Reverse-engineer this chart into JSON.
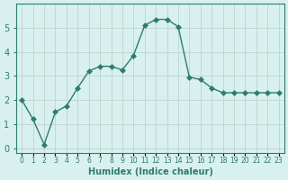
{
  "x": [
    0,
    1,
    2,
    3,
    4,
    5,
    6,
    7,
    8,
    9,
    10,
    11,
    12,
    13,
    14,
    15,
    16,
    17,
    18,
    19,
    20,
    21,
    22,
    23
  ],
  "y": [
    2.0,
    1.2,
    0.15,
    1.5,
    1.75,
    2.5,
    3.2,
    3.4,
    3.4,
    3.25,
    3.85,
    5.1,
    5.35,
    5.35,
    5.05,
    2.95,
    2.85,
    2.5,
    2.3,
    2.3,
    2.3,
    2.3,
    2.3,
    2.3
  ],
  "line_color": "#2e7d6e",
  "marker": "D",
  "marker_size": 3,
  "bg_color": "#d8f0ee",
  "grid_color": "#c0d8d4",
  "xlabel": "Humidex (Indice chaleur)",
  "xlim": [
    -0.5,
    23.5
  ],
  "ylim": [
    -0.2,
    6.0
  ],
  "yticks": [
    0,
    1,
    2,
    3,
    4,
    5
  ],
  "xticks": [
    0,
    1,
    2,
    3,
    4,
    5,
    6,
    7,
    8,
    9,
    10,
    11,
    12,
    13,
    14,
    15,
    16,
    17,
    18,
    19,
    20,
    21,
    22,
    23
  ],
  "xtick_labels": [
    "0",
    "1",
    "2",
    "3",
    "4",
    "5",
    "6",
    "7",
    "8",
    "9",
    "10",
    "11",
    "12",
    "13",
    "14",
    "15",
    "16",
    "17",
    "18",
    "19",
    "20",
    "21",
    "22",
    "23"
  ],
  "spine_color": "#2e7d6e",
  "tick_color": "#2e7d6e",
  "label_color": "#2e7d6e"
}
